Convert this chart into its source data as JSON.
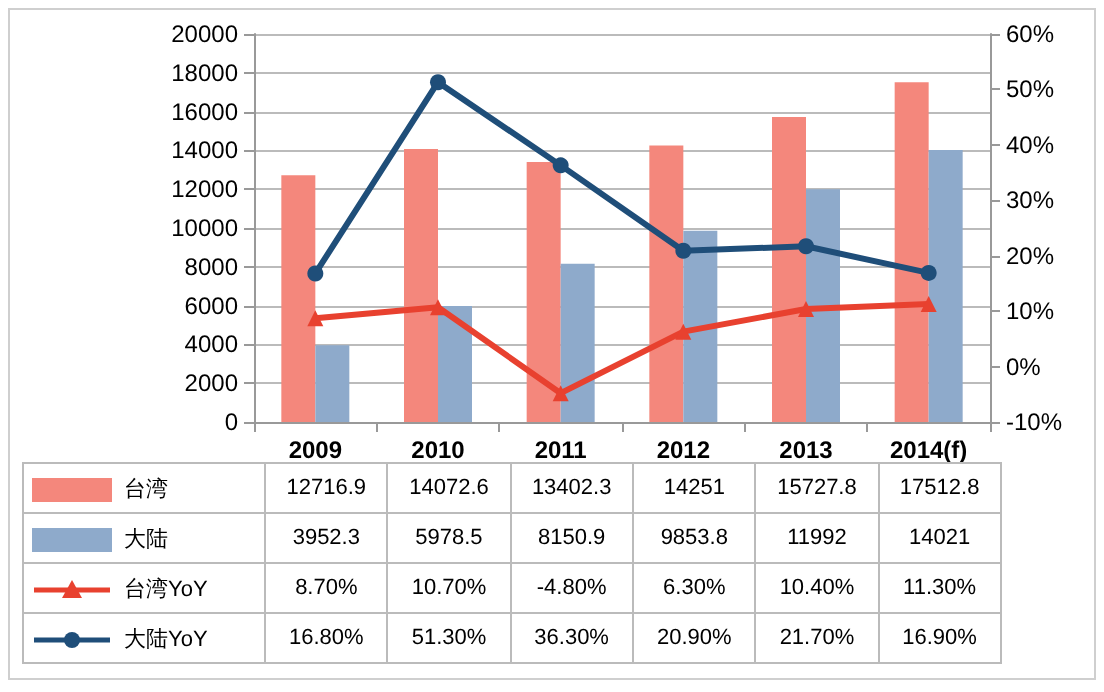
{
  "chart_data": {
    "type": "bar",
    "categories": [
      "2009",
      "2010",
      "2011",
      "2012",
      "2013",
      "2014(f)"
    ],
    "series": [
      {
        "name": "台湾",
        "color": "#f4877c",
        "values": [
          12716.9,
          14072.6,
          13402.3,
          14251,
          15727.8,
          17512.8
        ],
        "value_labels": [
          "12716.9",
          "14072.6",
          "13402.3",
          "14251",
          "15727.8",
          "17512.8"
        ]
      },
      {
        "name": "大陆",
        "color": "#8eaacb",
        "values": [
          3952.3,
          5978.5,
          8150.9,
          9853.8,
          11992,
          14021
        ],
        "value_labels": [
          "3952.3",
          "5978.5",
          "8150.9",
          "9853.8",
          "11992",
          "14021"
        ]
      },
      {
        "name": "台湾YoY",
        "type": "line",
        "axis": "y2",
        "marker": "triangle",
        "color": "#e8412f",
        "values": [
          8.7,
          10.7,
          -4.8,
          6.3,
          10.4,
          11.3
        ],
        "value_labels": [
          "8.70%",
          "10.70%",
          "-4.80%",
          "6.30%",
          "10.40%",
          "11.30%"
        ]
      },
      {
        "name": "大陆YoY",
        "type": "line",
        "axis": "y2",
        "marker": "circle",
        "color": "#1f4e79",
        "values": [
          16.8,
          51.3,
          36.3,
          20.9,
          21.7,
          16.9
        ],
        "value_labels": [
          "16.80%",
          "51.30%",
          "36.30%",
          "20.90%",
          "21.70%",
          "16.90%"
        ]
      }
    ],
    "ylim": [
      0,
      20000
    ],
    "yticks": [
      0,
      2000,
      4000,
      6000,
      8000,
      10000,
      12000,
      14000,
      16000,
      18000,
      20000
    ],
    "y2lim": [
      -10,
      60
    ],
    "y2ticks": [
      {
        "value": -10,
        "label": "-10%"
      },
      {
        "value": 0,
        "label": "0%"
      },
      {
        "value": 10,
        "label": "10%"
      },
      {
        "value": 20,
        "label": "20%"
      },
      {
        "value": 30,
        "label": "30%"
      },
      {
        "value": 40,
        "label": "40%"
      },
      {
        "value": 50,
        "label": "50%"
      },
      {
        "value": 60,
        "label": "60%"
      }
    ],
    "grid": "y",
    "legend": "bottom"
  }
}
